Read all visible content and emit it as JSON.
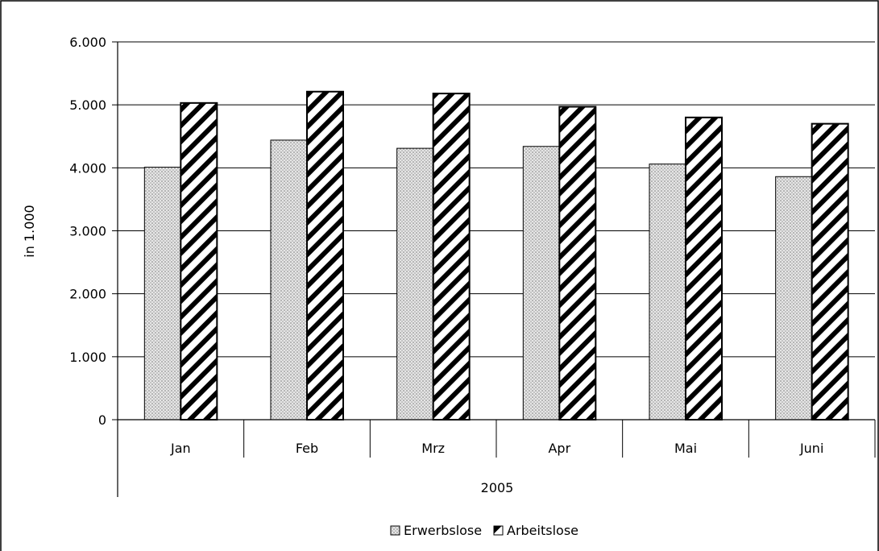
{
  "chart_data": {
    "type": "bar",
    "title": "",
    "xlabel": "",
    "ylabel": "in 1.000",
    "ylim": [
      0,
      6000
    ],
    "y_ticks": [
      0,
      1000,
      2000,
      3000,
      4000,
      5000,
      6000
    ],
    "y_tick_labels": [
      "0",
      "1.000",
      "2.000",
      "3.000",
      "4.000",
      "5.000",
      "6.000"
    ],
    "categories": [
      "Jan",
      "Feb",
      "Mrz",
      "Apr",
      "Mai",
      "Juni"
    ],
    "group_label": "2005",
    "grid": true,
    "legend_position": "bottom",
    "series": [
      {
        "name": "Erwerbslose",
        "fill": "dotted-gray",
        "values": [
          4010,
          4440,
          4310,
          4340,
          4060,
          3860
        ]
      },
      {
        "name": "Arbeitslose",
        "fill": "diagonal-hatch",
        "values": [
          5030,
          5210,
          5180,
          4970,
          4800,
          4700
        ]
      }
    ],
    "colors": {
      "gridline": "#000000",
      "bar_outline": "#000000",
      "dot_fill": "#d8d8d8",
      "hatch": "#000000"
    }
  }
}
